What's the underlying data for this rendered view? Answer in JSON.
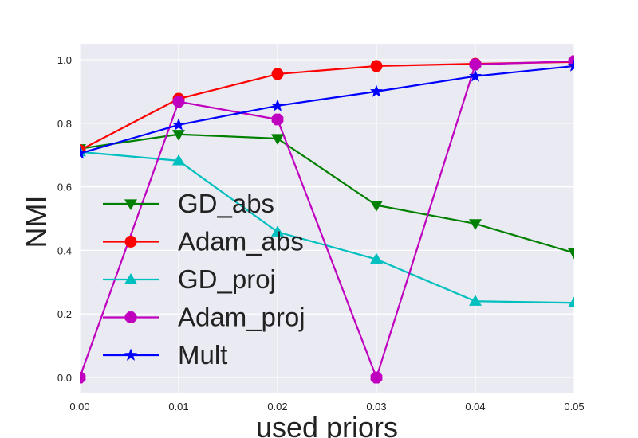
{
  "chart_data": {
    "type": "line",
    "xlabel": "used priors",
    "ylabel": "NMI",
    "x": [
      0.0,
      0.01,
      0.02,
      0.03,
      0.04,
      0.05
    ],
    "xticks": [
      "0.00",
      "0.01",
      "0.02",
      "0.03",
      "0.04",
      "0.05"
    ],
    "yticks": [
      "0.0",
      "0.2",
      "0.4",
      "0.6",
      "0.8",
      "1.0"
    ],
    "xlim": [
      0.0,
      0.05
    ],
    "ylim": [
      -0.05,
      1.05
    ],
    "grid": true,
    "background": "#eaeaf2",
    "legend_position": "left",
    "series": [
      {
        "name": "GD_abs",
        "color": "#008000",
        "marker": "triangle-down",
        "values": [
          0.72,
          0.765,
          0.752,
          0.542,
          0.484,
          0.392
        ]
      },
      {
        "name": "Adam_abs",
        "color": "#ff0000",
        "marker": "circle",
        "values": [
          0.715,
          0.877,
          0.955,
          0.98,
          0.987,
          0.993
        ]
      },
      {
        "name": "GD_proj",
        "color": "#00bfbf",
        "marker": "triangle-up",
        "values": [
          0.71,
          0.682,
          0.458,
          0.372,
          0.24,
          0.235
        ]
      },
      {
        "name": "Adam_proj",
        "color": "#bf00bf",
        "marker": "octagon",
        "values": [
          0.0,
          0.868,
          0.812,
          0.0,
          0.985,
          0.995
        ]
      },
      {
        "name": "Mult",
        "color": "#0000ff",
        "marker": "star",
        "values": [
          0.705,
          0.795,
          0.855,
          0.9,
          0.948,
          0.98
        ]
      }
    ]
  }
}
